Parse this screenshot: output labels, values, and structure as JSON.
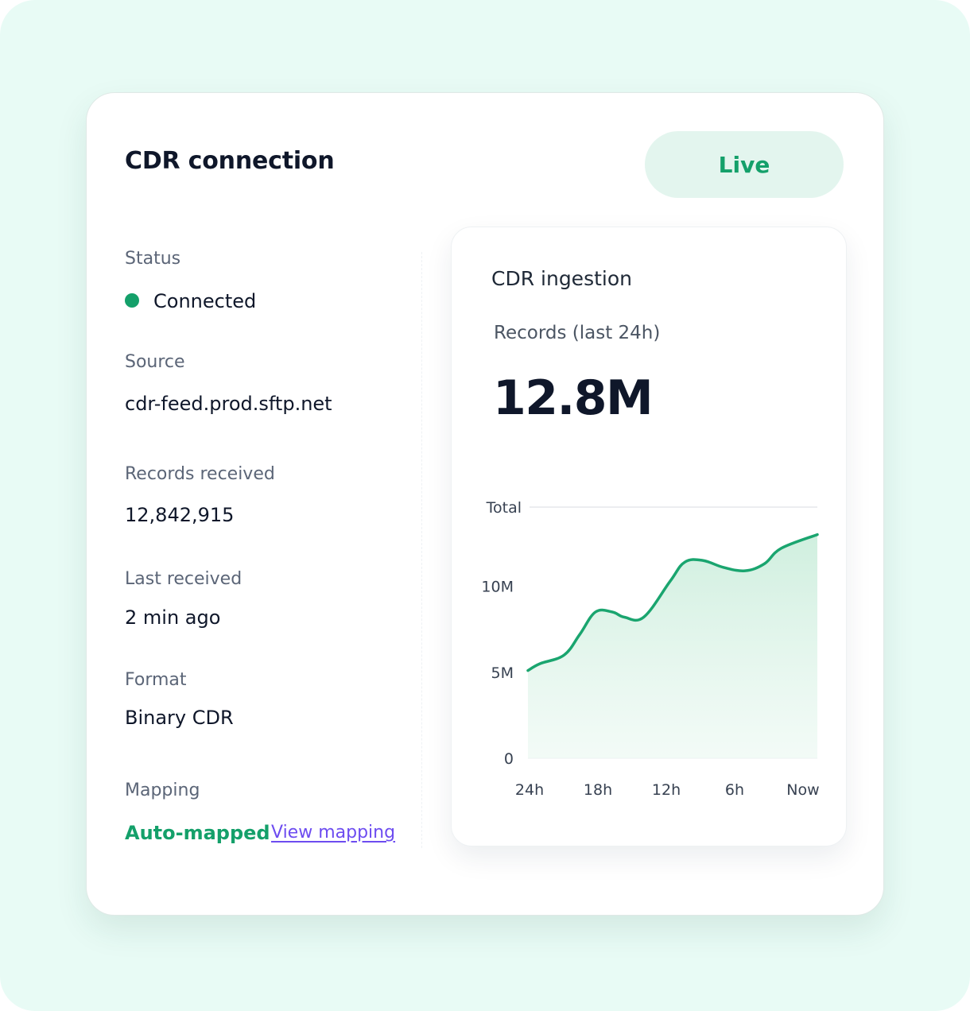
{
  "card": {
    "title": "CDR connection",
    "badge": "Live"
  },
  "fields": {
    "status": {
      "label": "Status",
      "value": "Connected"
    },
    "source": {
      "label": "Source",
      "value": "cdr-feed.prod.sftp.net"
    },
    "records_received": {
      "label": "Records received",
      "value": "12,842,915"
    },
    "last_received": {
      "label": "Last received",
      "value": "2 min ago"
    },
    "format": {
      "label": "Format",
      "value": "Binary CDR"
    },
    "mapping": {
      "label": "Mapping",
      "value": "Auto-mapped",
      "link": "View mapping"
    }
  },
  "colors": {
    "accent": "#14a06a",
    "link": "#6d4cf0",
    "badge_bg": "#e3f5ee",
    "page_bg": "#e8fbf5"
  },
  "chart_card": {
    "title": "CDR ingestion",
    "subtitle": "Records (last 24h)",
    "big_value": "12.8M"
  },
  "chart_data": {
    "type": "area",
    "title": "",
    "xlabel": "",
    "ylabel": "",
    "categories": [
      "24h",
      "18h",
      "12h",
      "6h",
      "Now"
    ],
    "y_ticks": [
      {
        "value": 0,
        "label": "0"
      },
      {
        "value": 5,
        "label": "5M"
      },
      {
        "value": 10,
        "label": "10M"
      },
      {
        "value": 14.6,
        "label": "Total"
      }
    ],
    "ylim": [
      0,
      14.6
    ],
    "xlim": [
      0,
      24
    ],
    "x": [
      0,
      1,
      3,
      4.3,
      5.6,
      7,
      8,
      9.6,
      11.8,
      13,
      14.5,
      16.2,
      18,
      19.6,
      21,
      24
    ],
    "values": [
      5.1,
      5.5,
      6.0,
      7.2,
      8.5,
      8.5,
      8.2,
      8.2,
      10.3,
      11.4,
      11.5,
      11.1,
      10.9,
      11.3,
      12.2,
      13.0
    ],
    "grid": false
  }
}
